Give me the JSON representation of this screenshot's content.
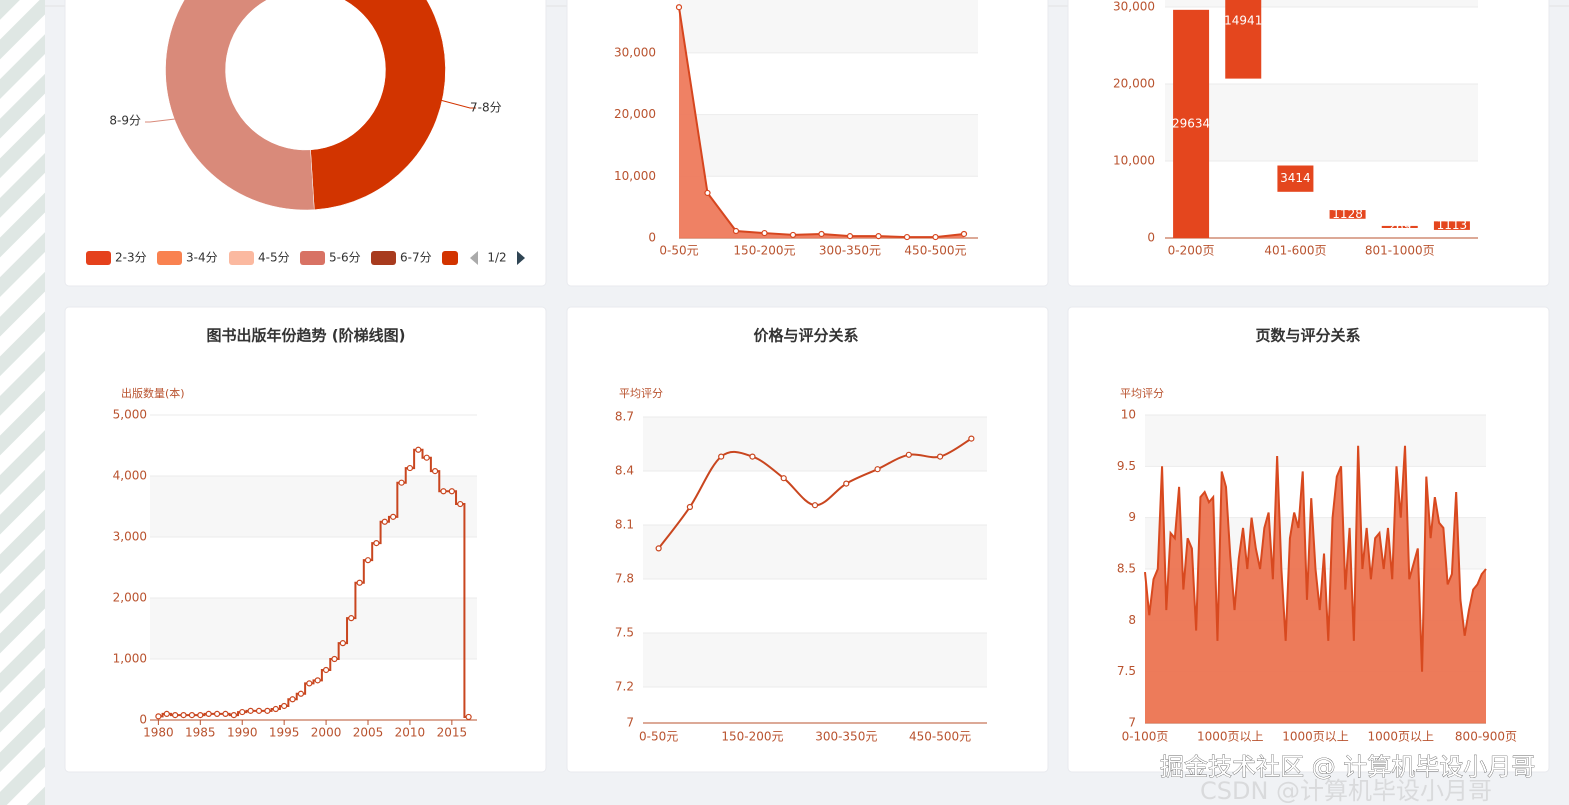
{
  "chart_data": [
    {
      "type": "pie",
      "categories": [
        "2-3分",
        "3-4分",
        "4-5分",
        "5-6分",
        "6-7分",
        "7-8分",
        "8-9分"
      ],
      "values": [
        2,
        5,
        8,
        15,
        20,
        4850,
        5100
      ],
      "colors": [
        "#e5411c",
        "#f98250",
        "#fbb9a0",
        "#d87264",
        "#a83b1e",
        "#d23400",
        "#d98a7a"
      ],
      "donut": true,
      "legend": "bottom",
      "legend_page": "1/2"
    },
    {
      "type": "line",
      "area": true,
      "markers": true,
      "color": "#d6461f",
      "area_color": "#ee7a5c",
      "categories": [
        "0-50元",
        null,
        null,
        "150-200元",
        null,
        null,
        "300-350元",
        null,
        null,
        "450-500元",
        null
      ],
      "values": [
        37400,
        7300,
        1130,
        800,
        500,
        650,
        300,
        300,
        150,
        150,
        650
      ],
      "ylim": [
        0,
        40000
      ],
      "yticks": [
        0,
        {
          "value": 10000,
          "label": "10,000"
        },
        {
          "value": 20000,
          "label": "20,000"
        },
        {
          "value": 30000,
          "label": "30,000"
        }
      ],
      "grid": true
    },
    {
      "type": "bar",
      "stacked": true,
      "categories": [
        "0-200页",
        null,
        "401-600页",
        null,
        "801-1000页",
        null
      ],
      "series": [
        {
          "color": "transparent",
          "values": [
            0,
            20700,
            6000,
            2500,
            1300,
            1050
          ]
        },
        {
          "color": "#e4461e",
          "values": [
            29634,
            14941,
            3414,
            1128,
            269,
            1113
          ],
          "show_labels": true
        }
      ],
      "ylim": [
        0,
        40000
      ],
      "yticks": [
        0,
        {
          "value": 10000,
          "label": "10,000"
        },
        {
          "value": 20000,
          "label": "20,000"
        },
        {
          "value": 30000,
          "label": "30,000"
        }
      ],
      "grid": true
    },
    {
      "type": "line",
      "step": "middle",
      "markers": true,
      "color": "#c9461f",
      "title": "图书出版年份趋势 (阶梯线图)",
      "y_label": "出版数量(本)",
      "x": [
        1980,
        1981,
        1982,
        1983,
        1984,
        1985,
        1986,
        1987,
        1988,
        1989,
        1990,
        1991,
        1992,
        1993,
        1994,
        1995,
        1996,
        1997,
        1998,
        1999,
        2000,
        2001,
        2002,
        2003,
        2004,
        2005,
        2006,
        2007,
        2008,
        2009,
        2010,
        2011,
        2012,
        2013,
        2014,
        2015,
        2016,
        2017
      ],
      "values": [
        60,
        100,
        80,
        80,
        80,
        80,
        100,
        100,
        100,
        80,
        130,
        150,
        150,
        150,
        180,
        230,
        340,
        430,
        600,
        650,
        820,
        1000,
        1260,
        1670,
        2250,
        2620,
        2900,
        3250,
        3330,
        3890,
        4130,
        4430,
        4300,
        4080,
        3750,
        3750,
        3540,
        50
      ],
      "xlim": [
        1979,
        2018
      ],
      "xticks": [
        1980,
        1985,
        1990,
        1995,
        2000,
        2005,
        2010,
        2015
      ],
      "ylim": [
        0,
        5000
      ],
      "yticks": [
        0,
        {
          "value": 1000,
          "label": "1,000"
        },
        {
          "value": 2000,
          "label": "2,000"
        },
        {
          "value": 3000,
          "label": "3,000"
        },
        {
          "value": 4000,
          "label": "4,000"
        },
        {
          "value": 5000,
          "label": "5,000"
        }
      ],
      "grid": true
    },
    {
      "type": "line",
      "smooth": true,
      "markers": true,
      "color": "#c9461f",
      "title": "价格与评分关系",
      "y_label": "平均评分",
      "categories": [
        "0-50元",
        null,
        null,
        "150-200元",
        null,
        null,
        "300-350元",
        null,
        null,
        "450-500元",
        null
      ],
      "values": [
        7.97,
        8.2,
        8.48,
        8.48,
        8.36,
        8.21,
        8.33,
        8.41,
        8.49,
        8.48,
        8.58
      ],
      "ylim": [
        7,
        8.7
      ],
      "yticks": [
        7,
        7.2,
        7.5,
        7.8,
        8.1,
        8.4,
        8.7
      ],
      "grid": true
    },
    {
      "type": "line",
      "area": true,
      "color": "#d8491f",
      "area_color": "#ec7451",
      "title": "页数与评分关系",
      "y_label": "平均评分",
      "categories": [
        "0-100页",
        null,
        null,
        null,
        null,
        null,
        null,
        null,
        null,
        null,
        null,
        null,
        null,
        null,
        null,
        null,
        null,
        null,
        null,
        null,
        "1000页以上",
        null,
        null,
        null,
        null,
        null,
        null,
        null,
        null,
        null,
        null,
        null,
        null,
        null,
        null,
        null,
        null,
        null,
        null,
        null,
        "1000页以上",
        null,
        null,
        null,
        null,
        null,
        null,
        null,
        null,
        null,
        null,
        null,
        null,
        null,
        null,
        null,
        null,
        null,
        null,
        null,
        "1000页以上",
        null,
        null,
        null,
        null,
        null,
        null,
        null,
        null,
        null,
        null,
        null,
        null,
        null,
        null,
        null,
        null,
        null,
        null,
        null,
        "800-900页"
      ],
      "values": [
        8.47,
        8.05,
        8.4,
        8.5,
        9.5,
        8.1,
        8.85,
        8.8,
        9.3,
        8.3,
        8.8,
        8.7,
        7.9,
        9.2,
        9.25,
        9.15,
        9.2,
        7.8,
        9.45,
        9.3,
        8.63,
        8.1,
        8.6,
        8.9,
        8.5,
        9.0,
        8.7,
        8.5,
        8.9,
        9.05,
        8.4,
        9.6,
        8.5,
        7.8,
        8.8,
        9.05,
        8.9,
        9.45,
        8.2,
        9.19,
        8.5,
        8.1,
        8.65,
        7.8,
        9.0,
        9.4,
        9.5,
        8.3,
        8.9,
        7.8,
        9.7,
        8.5,
        8.9,
        8.4,
        8.8,
        8.85,
        8.5,
        8.9,
        8.4,
        9.5,
        9.0,
        9.7,
        8.4,
        8.55,
        8.7,
        7.5,
        9.4,
        8.8,
        9.2,
        8.95,
        8.9,
        8.35,
        8.45,
        9.25,
        8.2,
        7.85,
        8.1,
        8.3,
        8.35,
        8.45,
        8.5
      ],
      "ylim": [
        7,
        10
      ],
      "yticks": [
        7,
        7.5,
        8,
        8.5,
        9,
        9.5,
        10
      ],
      "grid": true
    }
  ],
  "watermark": "掘金技术社区 @ 计算机毕设小月哥",
  "watermark_ghost": "CSDN @计算机毕设小月哥"
}
